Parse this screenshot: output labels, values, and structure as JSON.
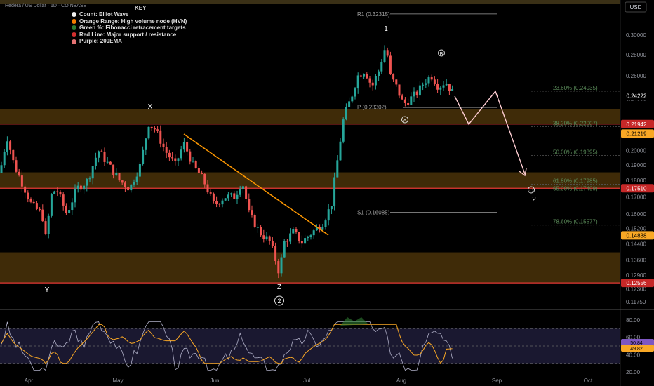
{
  "header": {
    "symbol_title": "Hedera / US Dollar · 1D · COINBASE",
    "currency": "USD"
  },
  "legend": {
    "key_label": "KEY",
    "items": [
      {
        "label": "Count: Elliot Wave",
        "color": "#f0f0f0"
      },
      {
        "label": "Orange Range: High volume node (HVN)",
        "color": "#f57c00"
      },
      {
        "label": "Green %: Fibonacci retracement targets",
        "color": "#2e7d32"
      },
      {
        "label": "Red Line: Major support / resistance",
        "color": "#d32f2f"
      },
      {
        "label": "Purple: 200EMA",
        "color": "#e57373"
      }
    ]
  },
  "chart_data": {
    "type": "candlestick",
    "price_axis": {
      "ticks": [
        "0.30000",
        "0.28000",
        "0.26000",
        "0.24000",
        "0.22000",
        "0.20000",
        "0.19000",
        "0.18000",
        "0.17000",
        "0.16000",
        "0.15200",
        "0.14400",
        "0.13600",
        "0.12900",
        "0.12300",
        "0.11750"
      ],
      "tick_values": [
        0.3,
        0.28,
        0.26,
        0.24,
        0.22,
        0.2,
        0.19,
        0.18,
        0.17,
        0.16,
        0.152,
        0.144,
        0.136,
        0.129,
        0.123,
        0.1175
      ],
      "badges": [
        {
          "value": 0.24222,
          "label": "0.24222",
          "color": "#000000",
          "text_color": "#ffffff"
        },
        {
          "value": 0.21942,
          "label": "0.21942",
          "color": "#c62828",
          "text_color": "#ffffff"
        },
        {
          "value": 0.21219,
          "label": "0.21219",
          "color": "#f9a825",
          "text_color": "#000000"
        },
        {
          "value": 0.1751,
          "label": "0.17510",
          "color": "#c62828",
          "text_color": "#ffffff"
        },
        {
          "value": 0.14838,
          "label": "0.14838",
          "color": "#f9a825",
          "text_color": "#000000"
        },
        {
          "value": 0.12556,
          "label": "0.12556",
          "color": "#c62828",
          "text_color": "#ffffff"
        }
      ]
    },
    "time_axis": [
      "Apr",
      "May",
      "Jun",
      "Jul",
      "Aug",
      "Sep",
      "Oct"
    ],
    "hvn_zones": [
      [
        0.21942,
        0.231
      ],
      [
        0.1751,
        0.1852
      ],
      [
        0.12556,
        0.1398
      ]
    ],
    "support_resistance": [
      0.21942,
      0.1751,
      0.12556
    ],
    "fib_levels": [
      {
        "label": "23.60% (0.24935)",
        "value": 0.24935
      },
      {
        "label": "38.20% (0.22007)",
        "value": 0.22007
      },
      {
        "label": "50.00% (0.19895)",
        "value": 0.19895
      },
      {
        "label": "61.80% (0.17985)",
        "value": 0.17985
      },
      {
        "label": "65.00% (0.17499)",
        "value": 0.17499
      },
      {
        "label": "78.60% (0.15577)",
        "value": 0.15577
      }
    ],
    "pivots": [
      {
        "label": "R1 (0.32315)",
        "value": 0.32315
      },
      {
        "label": "P (0.23302)",
        "value": 0.23302
      },
      {
        "label": "S1 (0.16085)",
        "value": 0.16085
      }
    ],
    "wave_labels": [
      {
        "text": "X",
        "kind": "plain"
      },
      {
        "text": "Y",
        "kind": "plain"
      },
      {
        "text": "Z",
        "kind": "plain"
      },
      {
        "text": "2",
        "kind": "circled"
      },
      {
        "text": "1",
        "kind": "plain"
      },
      {
        "text": "A",
        "kind": "circled"
      },
      {
        "text": "B",
        "kind": "circled"
      },
      {
        "text": "C",
        "kind": "circled"
      },
      {
        "text": "2",
        "kind": "plain"
      }
    ],
    "rsi": {
      "ticks": [
        "80.00",
        "60.00",
        "40.00",
        "20.00"
      ],
      "tick_values": [
        80,
        60,
        40,
        20
      ],
      "badges": [
        {
          "label": "50.84",
          "color": "#7e57c2"
        },
        {
          "label": "49.82",
          "color": "#f9a825"
        }
      ]
    }
  }
}
